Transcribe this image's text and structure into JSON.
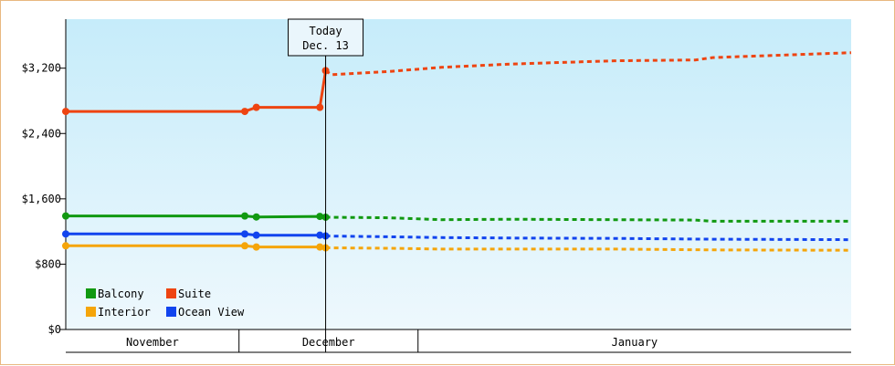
{
  "chart_data": {
    "type": "line",
    "today_marker": {
      "line1": "Today",
      "line2": "Dec. 13",
      "x": 46
    },
    "x_domain": [
      1,
      137
    ],
    "months": [
      {
        "label": "November",
        "start": 1,
        "end": 31
      },
      {
        "label": "December",
        "start": 31,
        "end": 62
      },
      {
        "label": "January",
        "start": 62,
        "end": 137
      }
    ],
    "ylim": [
      0,
      3800
    ],
    "y_ticks": [
      {
        "value": 0,
        "label": "$0"
      },
      {
        "value": 800,
        "label": "$800"
      },
      {
        "value": 1600,
        "label": "$1,600"
      },
      {
        "value": 2400,
        "label": "$2,400"
      },
      {
        "value": 3200,
        "label": "$3,200"
      }
    ],
    "grid": false,
    "legend_position": "bottom-left",
    "series": [
      {
        "name": "Balcony",
        "color": "#119911",
        "actual": [
          [
            1,
            1390
          ],
          [
            32,
            1390
          ],
          [
            34,
            1378
          ],
          [
            45,
            1385
          ],
          [
            46,
            1375
          ]
        ],
        "forecast": [
          [
            46,
            1375
          ],
          [
            57,
            1368
          ],
          [
            66,
            1345
          ],
          [
            78,
            1350
          ],
          [
            96,
            1345
          ],
          [
            110,
            1340
          ],
          [
            113,
            1325
          ],
          [
            137,
            1325
          ]
        ]
      },
      {
        "name": "Suite",
        "color": "#ee4411",
        "actual": [
          [
            1,
            2670
          ],
          [
            32,
            2670
          ],
          [
            34,
            2720
          ],
          [
            45,
            2720
          ],
          [
            46,
            3170
          ]
        ],
        "forecast": [
          [
            46,
            3170
          ],
          [
            47,
            3120
          ],
          [
            57,
            3160
          ],
          [
            66,
            3210
          ],
          [
            78,
            3250
          ],
          [
            96,
            3290
          ],
          [
            110,
            3300
          ],
          [
            113,
            3330
          ],
          [
            125,
            3360
          ],
          [
            137,
            3390
          ]
        ]
      },
      {
        "name": "Interior",
        "color": "#f5a50a",
        "actual": [
          [
            1,
            1025
          ],
          [
            32,
            1025
          ],
          [
            34,
            1010
          ],
          [
            45,
            1010
          ],
          [
            46,
            1000
          ]
        ],
        "forecast": [
          [
            46,
            1000
          ],
          [
            57,
            995
          ],
          [
            66,
            985
          ],
          [
            78,
            985
          ],
          [
            96,
            985
          ],
          [
            113,
            975
          ],
          [
            137,
            970
          ]
        ]
      },
      {
        "name": "Ocean View",
        "color": "#1144ee",
        "actual": [
          [
            1,
            1170
          ],
          [
            32,
            1170
          ],
          [
            34,
            1155
          ],
          [
            45,
            1155
          ],
          [
            46,
            1145
          ]
        ],
        "forecast": [
          [
            46,
            1145
          ],
          [
            57,
            1135
          ],
          [
            66,
            1125
          ],
          [
            78,
            1120
          ],
          [
            96,
            1115
          ],
          [
            113,
            1105
          ],
          [
            137,
            1100
          ]
        ]
      }
    ]
  }
}
